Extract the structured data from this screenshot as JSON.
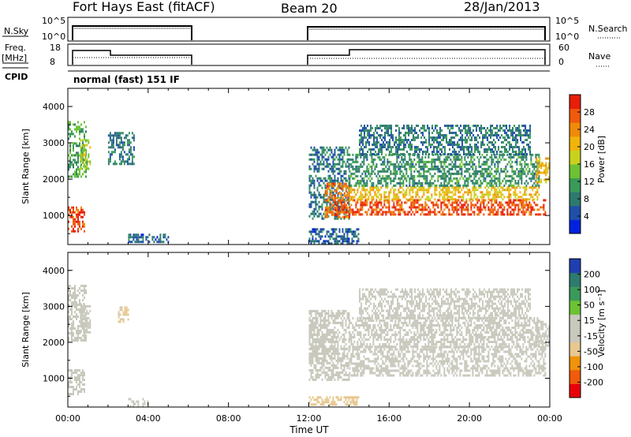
{
  "header": {
    "station": "Fort Hays East (fitACF)",
    "beam": "Beam 20",
    "date": "28/Jan/2013"
  },
  "panels": {
    "nsky_label": "N.Sky",
    "nsky_ticks": [
      "10^5",
      "10^0"
    ],
    "nsearch_label": "N.Search",
    "nsearch_ticks": [
      "10^5",
      "10^0"
    ],
    "freq_label": "Freq.",
    "freq_unit": "[MHz]",
    "freq_ticks": [
      "18",
      "8"
    ],
    "nave_label": "Nave",
    "nave_ticks": [
      "60",
      "0"
    ],
    "cpid_label": "CPID",
    "cpid_text": "normal (fast) 151 IF"
  },
  "colors": {
    "power_scale": [
      "#0022dd",
      "#1f4fa8",
      "#2e7a6e",
      "#3a9a5a",
      "#6cc234",
      "#c8d21e",
      "#f0b40a",
      "#f08a0a",
      "#f05a0a",
      "#e81e0a"
    ],
    "velocity_scale": [
      "#e8000a",
      "#f05a0a",
      "#f0920a",
      "#e8c890",
      "#c8c8bc",
      "#c8c8bc",
      "#6cc234",
      "#3a9a5a",
      "#2e7a6e",
      "#1f3fb0"
    ],
    "ground_scatter": "#c8c8bc"
  },
  "chart_data": [
    {
      "type": "heatmap",
      "quantity": "power",
      "title": "",
      "xlabel": "",
      "ylabel": "Slant Range [km]",
      "ylim": [
        200,
        4500
      ],
      "yticks": [
        "1000",
        "2000",
        "3000",
        "4000"
      ],
      "colorbar_label": "Power [dB]",
      "colorbar_ticks": [
        "4",
        "8",
        "12",
        "16",
        "20",
        "24",
        "28"
      ],
      "colorbar_range": [
        0,
        32
      ],
      "x_hours_range": [
        0,
        24
      ],
      "regions": [
        {
          "t": [
            0.0,
            0.8
          ],
          "r": [
            550,
            1250
          ],
          "level": 28
        },
        {
          "t": [
            0.0,
            0.9
          ],
          "r": [
            2050,
            3600
          ],
          "level": 12
        },
        {
          "t": [
            0.6,
            1.1
          ],
          "r": [
            2300,
            3100
          ],
          "level": 16
        },
        {
          "t": [
            2.0,
            3.3
          ],
          "r": [
            2400,
            3300
          ],
          "level": 8
        },
        {
          "t": [
            3.0,
            5.0
          ],
          "r": [
            250,
            500
          ],
          "level": 6
        },
        {
          "t": [
            12.0,
            14.0
          ],
          "r": [
            900,
            2900
          ],
          "level": 8
        },
        {
          "t": [
            12.8,
            14.0
          ],
          "r": [
            950,
            1900
          ],
          "level": 26
        },
        {
          "t": [
            14.0,
            23.8
          ],
          "r": [
            1050,
            1450
          ],
          "level": 28
        },
        {
          "t": [
            14.0,
            23.5
          ],
          "r": [
            1450,
            1800
          ],
          "level": 20
        },
        {
          "t": [
            14.0,
            23.5
          ],
          "r": [
            1800,
            2700
          ],
          "level": 10
        },
        {
          "t": [
            14.5,
            23.0
          ],
          "r": [
            2700,
            3500
          ],
          "level": 8
        },
        {
          "t": [
            23.3,
            24.0
          ],
          "r": [
            1900,
            2600
          ],
          "level": 20
        },
        {
          "t": [
            12.0,
            14.5
          ],
          "r": [
            250,
            650
          ],
          "level": 6
        }
      ]
    },
    {
      "type": "heatmap",
      "quantity": "velocity",
      "title": "",
      "xlabel": "Time UT",
      "ylabel": "Slant Range [km]",
      "ylim": [
        200,
        4500
      ],
      "yticks": [
        "1000",
        "2000",
        "3000",
        "4000"
      ],
      "xticks": [
        "00:00",
        "04:00",
        "08:00",
        "12:00",
        "16:00",
        "20:00",
        "00:00"
      ],
      "colorbar_label": "Velocity [m s⁻¹]",
      "colorbar_ticks": [
        "200",
        "100",
        "50",
        "15",
        "-15",
        "-50",
        "-100",
        "-200"
      ],
      "colorbar_range": [
        -250,
        250
      ],
      "x_hours_range": [
        0,
        24
      ],
      "regions": [
        {
          "t": [
            0.0,
            0.8
          ],
          "r": [
            550,
            1250
          ],
          "level": 0
        },
        {
          "t": [
            0.0,
            0.9
          ],
          "r": [
            2050,
            3600
          ],
          "level": 0
        },
        {
          "t": [
            0.6,
            1.1
          ],
          "r": [
            2300,
            3100
          ],
          "level": 0
        },
        {
          "t": [
            2.5,
            3.0
          ],
          "r": [
            2600,
            3000
          ],
          "level": -60
        },
        {
          "t": [
            3.0,
            4.0
          ],
          "r": [
            250,
            450
          ],
          "level": 30
        },
        {
          "t": [
            12.0,
            14.0
          ],
          "r": [
            950,
            2900
          ],
          "level": 30
        },
        {
          "t": [
            12.0,
            12.9
          ],
          "r": [
            1500,
            2900
          ],
          "level": 0
        },
        {
          "t": [
            14.0,
            23.8
          ],
          "r": [
            1050,
            1900
          ],
          "level": 0
        },
        {
          "t": [
            14.0,
            23.5
          ],
          "r": [
            1900,
            2700
          ],
          "level": -30
        },
        {
          "t": [
            14.5,
            23.0
          ],
          "r": [
            2700,
            3500
          ],
          "level": 0
        },
        {
          "t": [
            23.3,
            24.0
          ],
          "r": [
            1900,
            2600
          ],
          "level": 0
        },
        {
          "t": [
            12.0,
            14.5
          ],
          "r": [
            250,
            500
          ],
          "level": -80
        }
      ]
    }
  ]
}
